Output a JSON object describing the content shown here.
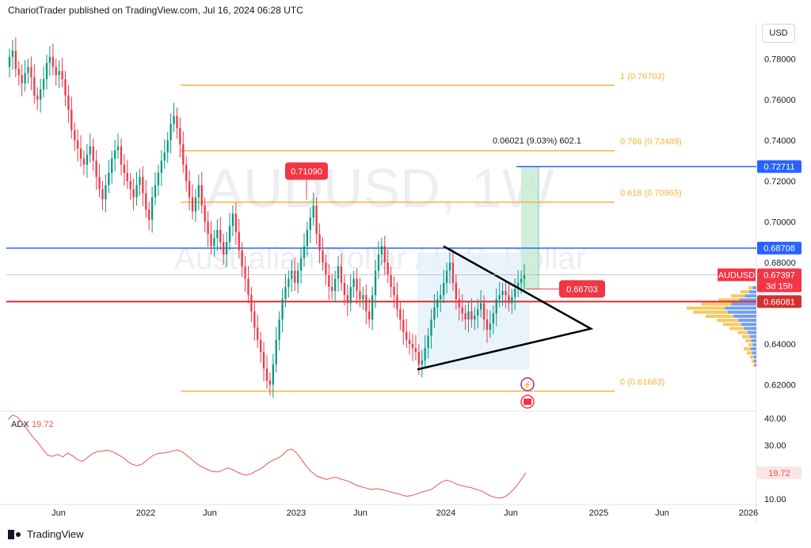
{
  "header": {
    "publisher": "ChariotTrader published on TradingView.com, Jul 16, 2024 06:28 UTC"
  },
  "currency_button": "USD",
  "footer": {
    "brand": "TradingView"
  },
  "watermark": {
    "symbol": "AUDUSD, 1W",
    "name": "Australian Dollar / U.S. Dollar"
  },
  "colors": {
    "up": "#089981",
    "down": "#f23645",
    "fib": "#f5b33d",
    "blue_level": "#2962ff",
    "red_level": "#d32f2f",
    "adx": "#f05350",
    "grid": "#e0e3eb"
  },
  "chart_data": [
    {
      "type": "candlestick",
      "symbol": "AUDUSD",
      "timeframe": "1W",
      "ylim": [
        0.607,
        0.798
      ],
      "y_ticks": [
        "0.78000",
        "0.76000",
        "0.74000",
        "0.72000",
        "0.70000",
        "0.68000",
        "0.66000",
        "0.64000",
        "0.62000"
      ],
      "x_ticks": [
        "Jun",
        "2022",
        "Jun",
        "2023",
        "Jun",
        "2024",
        "Jun",
        "2025",
        "Jun",
        "2026"
      ],
      "close_series": [
        0.781,
        0.784,
        0.775,
        0.772,
        0.768,
        0.773,
        0.776,
        0.771,
        0.762,
        0.76,
        0.765,
        0.77,
        0.778,
        0.781,
        0.776,
        0.772,
        0.774,
        0.77,
        0.762,
        0.755,
        0.745,
        0.74,
        0.736,
        0.731,
        0.728,
        0.733,
        0.737,
        0.73,
        0.722,
        0.716,
        0.711,
        0.718,
        0.724,
        0.731,
        0.735,
        0.737,
        0.728,
        0.724,
        0.72,
        0.716,
        0.712,
        0.718,
        0.722,
        0.714,
        0.706,
        0.701,
        0.712,
        0.718,
        0.724,
        0.73,
        0.734,
        0.74,
        0.748,
        0.752,
        0.746,
        0.738,
        0.728,
        0.72,
        0.712,
        0.705,
        0.712,
        0.718,
        0.708,
        0.7,
        0.694,
        0.688,
        0.692,
        0.696,
        0.69,
        0.684,
        0.69,
        0.698,
        0.704,
        0.695,
        0.686,
        0.678,
        0.672,
        0.664,
        0.656,
        0.648,
        0.642,
        0.636,
        0.628,
        0.622,
        0.62,
        0.63,
        0.642,
        0.652,
        0.662,
        0.668,
        0.672,
        0.676,
        0.67,
        0.676,
        0.682,
        0.688,
        0.696,
        0.702,
        0.708,
        0.694,
        0.686,
        0.68,
        0.674,
        0.668,
        0.666,
        0.672,
        0.678,
        0.67,
        0.664,
        0.66,
        0.668,
        0.672,
        0.666,
        0.662,
        0.664,
        0.656,
        0.652,
        0.664,
        0.676,
        0.684,
        0.688,
        0.68,
        0.674,
        0.668,
        0.664,
        0.657,
        0.652,
        0.646,
        0.642,
        0.64,
        0.638,
        0.636,
        0.63,
        0.632,
        0.638,
        0.644,
        0.652,
        0.658,
        0.662,
        0.664,
        0.67,
        0.676,
        0.68,
        0.67,
        0.662,
        0.658,
        0.655,
        0.652,
        0.656,
        0.652,
        0.654,
        0.657,
        0.66,
        0.652,
        0.647,
        0.65,
        0.655,
        0.662,
        0.664,
        0.666,
        0.664,
        0.66,
        0.663,
        0.667,
        0.67,
        0.672,
        0.674
      ],
      "fibonacci": [
        {
          "level": "1",
          "price": 0.76703,
          "label": "1 (0.76703)"
        },
        {
          "level": "0.786",
          "price": 0.73489,
          "label": "0.786 (0.73489)"
        },
        {
          "level": "0.618",
          "price": 0.70965,
          "label": "0.618 (0.70965)"
        },
        {
          "level": "0",
          "price": 0.61683,
          "label": "0 (0.61683)"
        }
      ],
      "levels": [
        {
          "price": 0.72711,
          "label": "0.72711",
          "color": "blue"
        },
        {
          "price": 0.68708,
          "label": "0.68708",
          "color": "blue"
        },
        {
          "price": 0.66081,
          "label": "0.66081",
          "color": "red"
        }
      ],
      "current_price": {
        "symbol": "AUDUSD",
        "price": 0.67397,
        "label": "0.67397",
        "countdown": "3d 15h"
      },
      "annotations": [
        {
          "text": "0.71090",
          "price": 0.7109
        },
        {
          "text": "0.66703",
          "price": 0.66703
        },
        {
          "text": "0.06021 (9.03%) 602.1"
        }
      ],
      "triangle": {
        "apex_price": 0.6475,
        "upper_start_price": 0.688,
        "lower_start_price": 0.6275
      },
      "projection_box": {
        "from_price": 0.66703,
        "to_price": 0.72711
      }
    },
    {
      "type": "line",
      "indicator": "ADX",
      "last_value": 19.72,
      "label": "ADX",
      "last_label": "19.72",
      "ylim": [
        8.5,
        42
      ],
      "y_ticks": [
        "40.00",
        "30.00",
        "10.00"
      ],
      "values": [
        39.5,
        41.2,
        40.3,
        38.0,
        35.5,
        33.0,
        31.0,
        28.5,
        26.2,
        25.8,
        26.5,
        25.6,
        27.0,
        26.0,
        24.5,
        24.0,
        25.4,
        26.8,
        27.6,
        27.8,
        28.1,
        27.5,
        26.5,
        25.5,
        24.0,
        22.8,
        22.3,
        23.0,
        24.5,
        26.0,
        26.8,
        27.0,
        27.2,
        27.8,
        28.2,
        27.5,
        26.0,
        24.5,
        23.0,
        21.8,
        21.0,
        20.2,
        20.0,
        20.5,
        21.5,
        21.0,
        20.0,
        19.2,
        18.8,
        19.5,
        20.5,
        21.5,
        23.0,
        24.2,
        25.0,
        26.0,
        28.0,
        28.5,
        27.0,
        24.5,
        22.0,
        20.0,
        18.5,
        17.8,
        17.2,
        17.8,
        18.0,
        17.3,
        16.8,
        16.0,
        15.0,
        14.5,
        14.0,
        13.5,
        13.8,
        13.5,
        13.0,
        12.5,
        12.0,
        11.5,
        11.0,
        11.2,
        11.8,
        12.5,
        13.0,
        13.5,
        14.8,
        16.2,
        17.0,
        16.5,
        15.5,
        15.0,
        14.5,
        14.2,
        13.5,
        13.0,
        12.0,
        11.0,
        10.5,
        10.3,
        11.0,
        12.5,
        14.5,
        17.0,
        19.72
      ]
    }
  ]
}
